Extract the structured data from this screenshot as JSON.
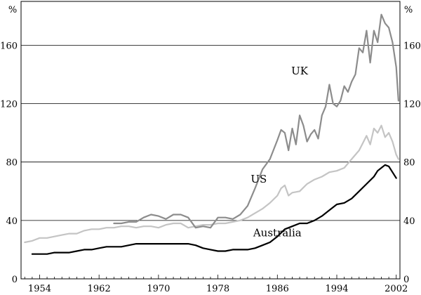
{
  "chart_data": {
    "type": "line",
    "title": "",
    "xlabel": "",
    "ylabel": "%",
    "xlim": [
      1951.5,
      2002.5
    ],
    "ylim": [
      0,
      190
    ],
    "yticks": [
      0,
      40,
      80,
      120,
      160
    ],
    "xticks": [
      1954,
      1962,
      1970,
      1978,
      1986,
      1994,
      2002
    ],
    "units_left": "%",
    "units_right": "%",
    "series": [
      {
        "name": "UK",
        "label": "UK",
        "color": "#8c8c8c",
        "x": [
          1964,
          1965,
          1966,
          1967,
          1968,
          1969,
          1970,
          1971,
          1972,
          1973,
          1974,
          1975,
          1976,
          1977,
          1978,
          1979,
          1980,
          1981,
          1982,
          1983,
          1984,
          1985,
          1986,
          1986.5,
          1987,
          1987.5,
          1988,
          1988.5,
          1989,
          1989.5,
          1990,
          1990.5,
          1991,
          1991.5,
          1992,
          1992.5,
          1993,
          1993.5,
          1994,
          1994.5,
          1995,
          1995.5,
          1996,
          1996.5,
          1997,
          1997.5,
          1998,
          1998.5,
          1999,
          1999.5,
          2000,
          2000.5,
          2001,
          2001.5,
          2002,
          2002.3
        ],
        "y": [
          38,
          38,
          39,
          39,
          42,
          44,
          43,
          41,
          44,
          44,
          42,
          35,
          36,
          35,
          42,
          42,
          41,
          44,
          50,
          62,
          75,
          82,
          95,
          102,
          100,
          88,
          103,
          92,
          112,
          105,
          94,
          99,
          102,
          96,
          112,
          118,
          133,
          120,
          118,
          122,
          132,
          128,
          135,
          140,
          158,
          155,
          170,
          148,
          170,
          162,
          181,
          175,
          172,
          162,
          145,
          122
        ],
        "label_at": [
          1989,
          140
        ]
      },
      {
        "name": "US",
        "label": "US",
        "color": "#c4c4c4",
        "x": [
          1952,
          1953,
          1954,
          1955,
          1956,
          1957,
          1958,
          1959,
          1960,
          1961,
          1962,
          1963,
          1964,
          1965,
          1966,
          1967,
          1968,
          1969,
          1970,
          1971,
          1972,
          1973,
          1974,
          1975,
          1976,
          1977,
          1978,
          1979,
          1980,
          1981,
          1982,
          1983,
          1984,
          1985,
          1986,
          1986.5,
          1987,
          1987.5,
          1988,
          1989,
          1990,
          1991,
          1992,
          1993,
          1994,
          1995,
          1996,
          1997,
          1997.5,
          1998,
          1998.5,
          1999,
          1999.5,
          2000,
          2000.5,
          2001,
          2001.5,
          2002,
          2002.3
        ],
        "y": [
          25,
          26,
          28,
          28,
          29,
          30,
          31,
          31,
          33,
          34,
          34,
          35,
          35,
          36,
          36,
          35,
          36,
          36,
          35,
          37,
          38,
          38,
          35,
          36,
          37,
          37,
          38,
          38,
          39,
          40,
          42,
          45,
          48,
          52,
          57,
          62,
          64,
          57,
          59,
          60,
          65,
          68,
          70,
          73,
          74,
          76,
          82,
          88,
          93,
          98,
          92,
          103,
          100,
          105,
          97,
          100,
          94,
          85,
          82
        ],
        "label_at": [
          1983.5,
          66
        ]
      },
      {
        "name": "Australia",
        "label": "Australia",
        "color": "#000000",
        "x": [
          1953,
          1954,
          1955,
          1956,
          1957,
          1958,
          1959,
          1960,
          1961,
          1962,
          1963,
          1964,
          1965,
          1966,
          1967,
          1968,
          1969,
          1970,
          1971,
          1972,
          1973,
          1974,
          1975,
          1976,
          1977,
          1978,
          1979,
          1980,
          1981,
          1982,
          1983,
          1984,
          1985,
          1986,
          1987,
          1988,
          1989,
          1990,
          1991,
          1992,
          1993,
          1994,
          1995,
          1996,
          1997,
          1998,
          1999,
          1999.5,
          2000,
          2000.5,
          2001,
          2001.5,
          2002
        ],
        "y": [
          17,
          17,
          17,
          18,
          18,
          18,
          19,
          20,
          20,
          21,
          22,
          22,
          22,
          23,
          24,
          24,
          24,
          24,
          24,
          24,
          24,
          24,
          23,
          21,
          20,
          19,
          19,
          20,
          20,
          20,
          21,
          23,
          25,
          29,
          34,
          36,
          38,
          38,
          40,
          43,
          47,
          51,
          52,
          55,
          60,
          65,
          70,
          74,
          76,
          78,
          77,
          73,
          69
        ],
        "label_at": [
          1986,
          29
        ]
      }
    ]
  }
}
